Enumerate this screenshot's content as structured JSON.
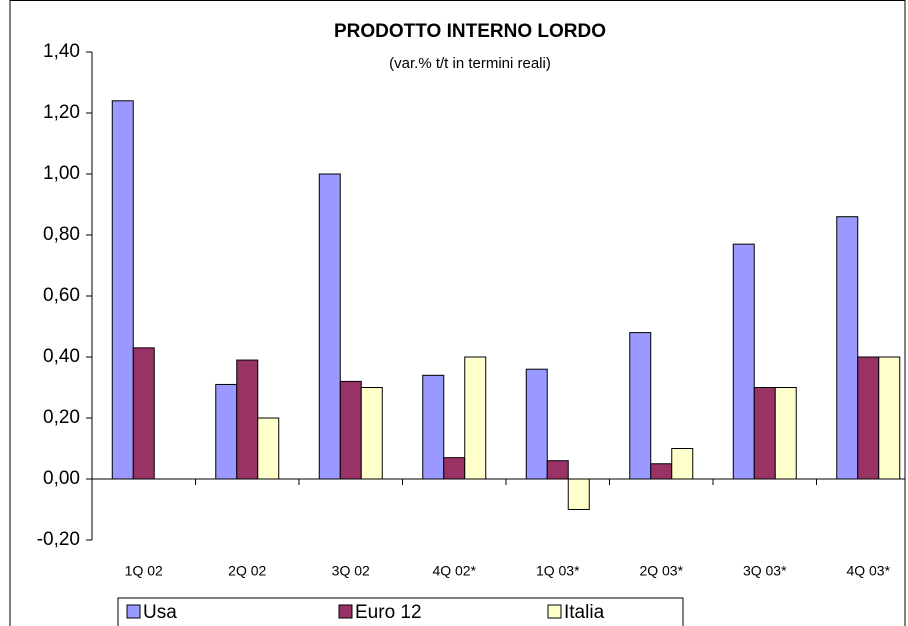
{
  "chart_data": {
    "type": "bar",
    "title": "PRODOTTO INTERNO LORDO",
    "subtitle": "(var.% t/t in termini reali)",
    "categories": [
      "1Q 02",
      "2Q 02",
      "3Q 02",
      "4Q 02*",
      "1Q 03*",
      "2Q 03*",
      "3Q 03*",
      "4Q 03*"
    ],
    "series": [
      {
        "name": "Usa",
        "color": "#9999ff",
        "values": [
          1.24,
          0.31,
          1.0,
          0.34,
          0.36,
          0.48,
          0.77,
          0.86
        ]
      },
      {
        "name": "Euro 12",
        "color": "#993366",
        "values": [
          0.43,
          0.39,
          0.32,
          0.07,
          0.06,
          0.05,
          0.3,
          0.4
        ]
      },
      {
        "name": "Italia",
        "color": "#ffffcc",
        "values": [
          0,
          0.2,
          0.3,
          0.4,
          -0.1,
          0.1,
          0.3,
          0.4
        ]
      }
    ],
    "ylim": [
      -0.2,
      1.4
    ],
    "yticks": [
      {
        "value": -0.2,
        "label": "-0,20"
      },
      {
        "value": 0,
        "label": "0,00"
      },
      {
        "value": 0.2,
        "label": "0,20"
      },
      {
        "value": 0.4,
        "label": "0,40"
      },
      {
        "value": 0.6,
        "label": "0,60"
      },
      {
        "value": 0.8,
        "label": "0,80"
      },
      {
        "value": 1.0,
        "label": "1,00"
      },
      {
        "value": 1.2,
        "label": "1,20"
      },
      {
        "value": 1.4,
        "label": "1,40"
      }
    ],
    "legend": "bottom"
  }
}
